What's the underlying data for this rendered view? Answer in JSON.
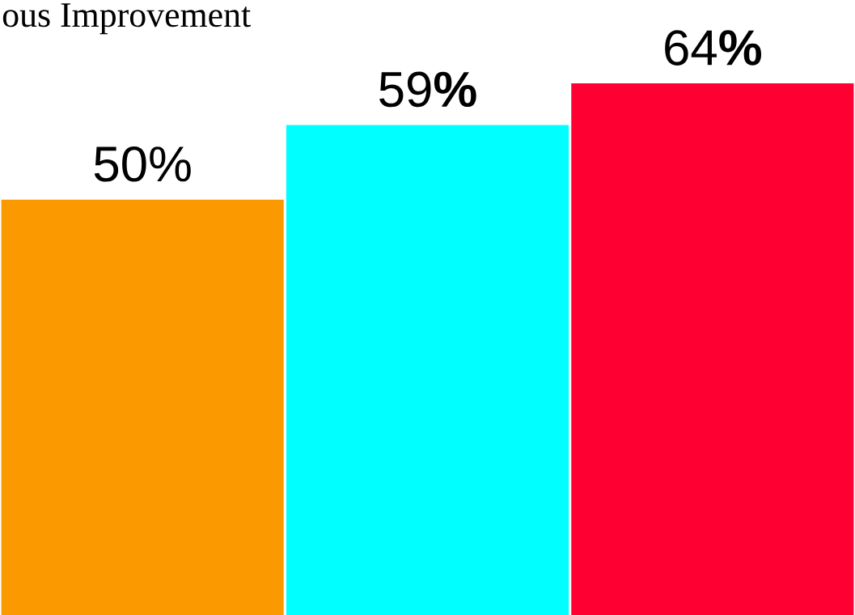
{
  "chart_data": {
    "type": "bar",
    "title": "ous Improvement",
    "categories": [
      null,
      null,
      null
    ],
    "values": [
      50,
      59,
      64
    ],
    "colors": [
      "#fb9900",
      "#00ffff",
      "#ff0033"
    ],
    "value_labels": [
      "50%",
      "59**%**",
      "64**%**"
    ]
  }
}
